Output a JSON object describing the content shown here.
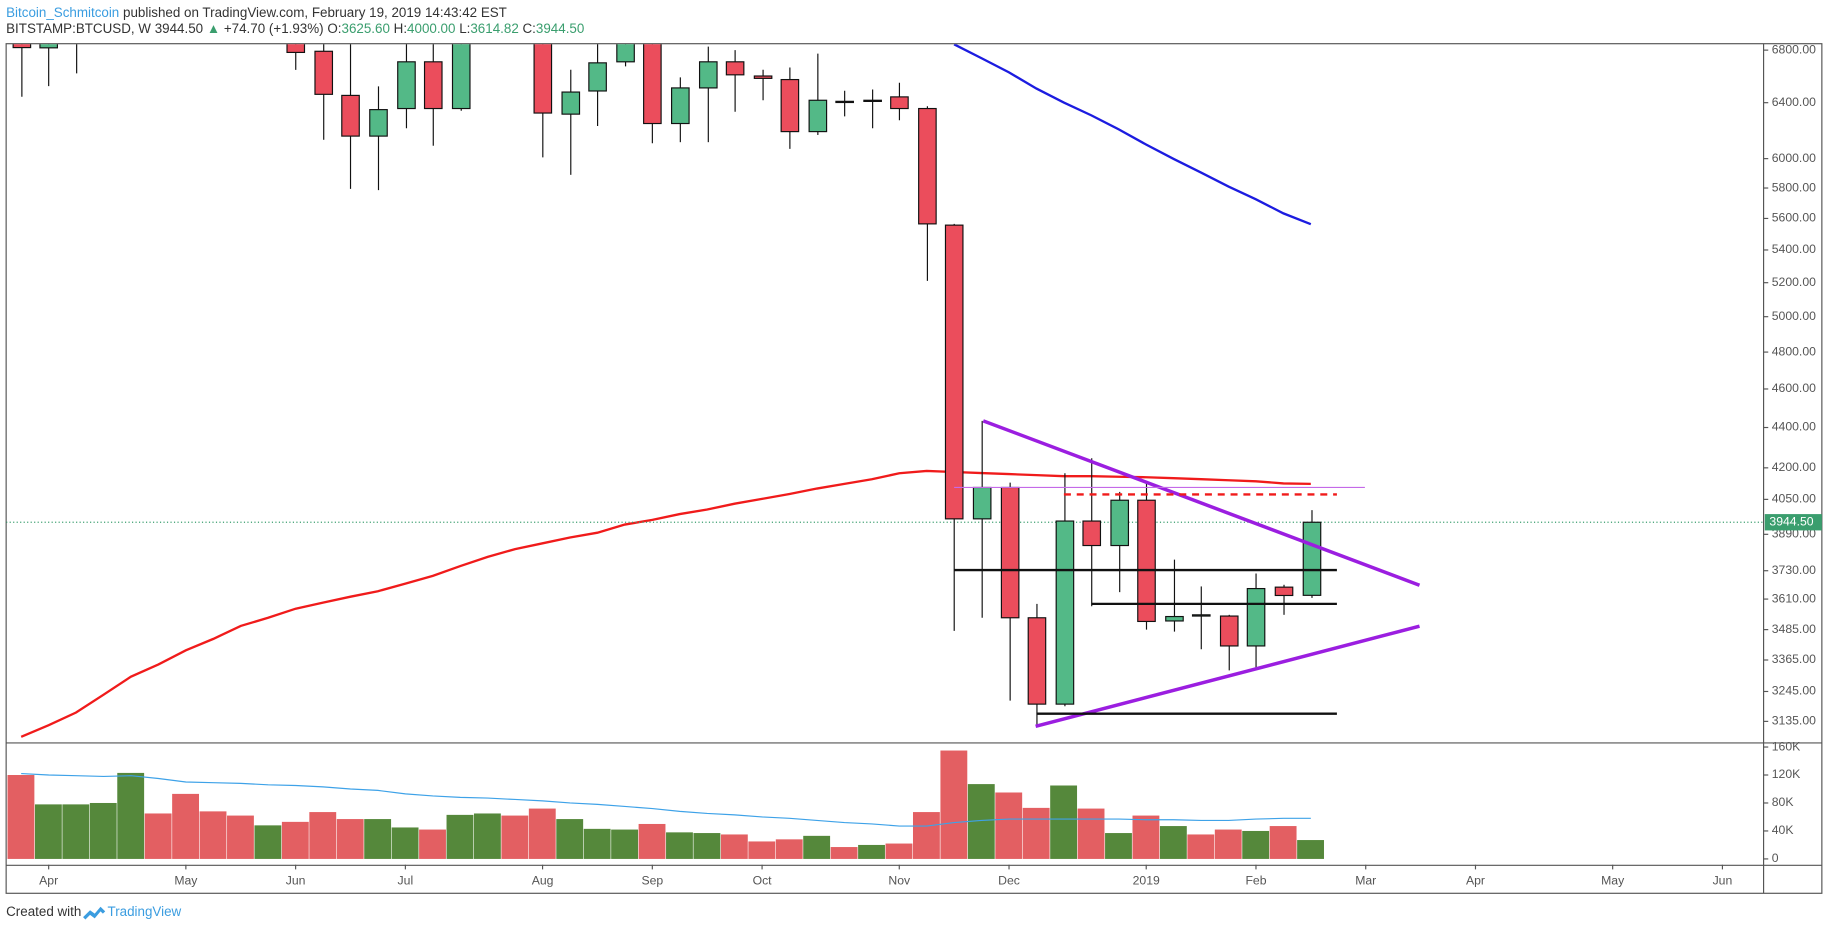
{
  "header": {
    "author": "Bitcoin_Schmitcoin",
    "published": "published on TradingView.com, February 19, 2019 14:43:42 EST",
    "symbol": "BITSTAMP:BTCUSD, W",
    "last": "3944.50",
    "arrow": "▲",
    "change": "+74.70",
    "change_pct": "(+1.93%)",
    "open_key": "O:",
    "open": "3625.60",
    "high_key": "H:",
    "high": "4000.00",
    "low_key": "L:",
    "low": "3614.82",
    "close_key": "C:",
    "close": "3944.50"
  },
  "footer": {
    "created": "Created with",
    "brand": "TradingView"
  },
  "chart_data": [
    {
      "type": "candlestick",
      "log_scale": true,
      "up_color": "#53b987",
      "down_color": "#eb4d5c",
      "x": [
        0,
        1,
        2,
        10,
        11,
        12,
        13,
        14,
        15,
        16,
        19,
        20,
        21,
        22,
        23,
        24,
        25,
        26,
        27,
        28,
        29,
        30,
        31,
        32,
        33,
        34,
        35,
        36,
        37,
        38,
        39,
        40,
        41,
        42,
        43,
        44,
        45,
        46,
        47
      ],
      "open": [
        6900,
        6818,
        6900,
        6880,
        6791,
        6454,
        6158,
        6357,
        6709,
        6357,
        7050,
        6316,
        6487,
        6709,
        7000,
        6248,
        6510,
        6709,
        6600,
        6573,
        6190,
        6410,
        6411,
        6443,
        6357,
        5557,
        3960,
        4106,
        3533,
        3198,
        3950,
        3840,
        4046,
        3520,
        3540,
        3540,
        3420,
        3660,
        3625.6
      ],
      "high": [
        6950,
        6900,
        7100,
        6900,
        6900,
        6870,
        6522,
        6880,
        6850,
        7500,
        7150,
        6648,
        6860,
        7050,
        7100,
        6590,
        6828,
        6800,
        6648,
        6665,
        6773,
        6489,
        6498,
        6549,
        6374,
        5565,
        4434,
        4129,
        3590,
        4174,
        4247,
        4085,
        4129,
        3778,
        3663,
        3545,
        3718,
        3670,
        4000
      ],
      "low": [
        6444,
        6523,
        6620,
        6647,
        6132,
        5794,
        5786,
        6214,
        6090,
        6341,
        6009,
        5889,
        6230,
        6674,
        6107,
        6115,
        6115,
        6333,
        6418,
        6068,
        6166,
        6300,
        6214,
        6272,
        5211,
        3480,
        3533,
        3211,
        3121,
        3190,
        3580,
        3639,
        3485,
        3477,
        3407,
        3325,
        3333,
        3545,
        3614.82
      ],
      "close": [
        6820,
        6880,
        7050,
        6782,
        6462,
        6158,
        6349,
        6709,
        6357,
        7400,
        6324,
        6479,
        6701,
        6950,
        6248,
        6510,
        6709,
        6609,
        6582,
        6190,
        6418,
        6406,
        6418,
        6357,
        5565,
        3960,
        4106,
        3533,
        3198,
        3950,
        3840,
        4046,
        3518,
        3538,
        3545,
        3420,
        3654,
        3625,
        3944.5
      ],
      "xlim": [
        -0.55,
        63.5
      ],
      "xticks": [
        {
          "value": 1,
          "label": "Apr"
        },
        {
          "value": 6,
          "label": "May"
        },
        {
          "value": 10,
          "label": "Jun"
        },
        {
          "value": 14,
          "label": "Jul"
        },
        {
          "value": 19,
          "label": "Aug"
        },
        {
          "value": 23,
          "label": "Sep"
        },
        {
          "value": 27,
          "label": "Oct"
        },
        {
          "value": 32,
          "label": "Nov"
        },
        {
          "value": 36,
          "label": "Dec"
        },
        {
          "value": 41,
          "label": "2019"
        },
        {
          "value": 45,
          "label": "Feb"
        },
        {
          "value": 49,
          "label": "Mar"
        },
        {
          "value": 53,
          "label": "Apr"
        },
        {
          "value": 58,
          "label": "May"
        },
        {
          "value": 62,
          "label": "Jun"
        }
      ],
      "ylim": [
        3060,
        6846
      ],
      "yticks": [
        {
          "value": 6800,
          "label": "6800.00"
        },
        {
          "value": 6400,
          "label": "6400.00"
        },
        {
          "value": 6000,
          "label": "6000.00"
        },
        {
          "value": 5800,
          "label": "5800.00"
        },
        {
          "value": 5600,
          "label": "5600.00"
        },
        {
          "value": 5400,
          "label": "5400.00"
        },
        {
          "value": 5200,
          "label": "5200.00"
        },
        {
          "value": 5000,
          "label": "5000.00"
        },
        {
          "value": 4800,
          "label": "4800.00"
        },
        {
          "value": 4600,
          "label": "4600.00"
        },
        {
          "value": 4400,
          "label": "4400.00"
        },
        {
          "value": 4200,
          "label": "4200.00"
        },
        {
          "value": 4050,
          "label": "4050.00"
        },
        {
          "value": 3890,
          "label": "3890.00"
        },
        {
          "value": 3730,
          "label": "3730.00"
        },
        {
          "value": 3610,
          "label": "3610.00"
        },
        {
          "value": 3485,
          "label": "3485.00"
        },
        {
          "value": 3365,
          "label": "3365.00"
        },
        {
          "value": 3245,
          "label": "3245.00"
        },
        {
          "value": 3135,
          "label": "3135.00"
        }
      ],
      "last_price": {
        "value": 3944.5,
        "label": "3944.50"
      },
      "last_price_color": "#3a9e6e",
      "moving_averages": [
        {
          "color": "#f01b1b",
          "x": [
            0,
            1,
            2,
            3,
            4,
            5,
            6,
            7,
            8,
            9,
            10,
            11,
            12,
            13,
            14,
            15,
            16,
            17,
            18,
            19,
            20,
            21,
            22,
            23,
            24,
            25,
            26,
            27,
            28,
            29,
            30,
            31,
            32,
            33,
            34,
            35,
            36,
            37,
            38,
            39,
            40,
            41,
            42,
            43,
            44,
            45,
            46,
            47
          ],
          "values": [
            3080,
            3121,
            3167,
            3233,
            3301,
            3348,
            3403,
            3448,
            3500,
            3533,
            3570,
            3595,
            3620,
            3643,
            3675,
            3708,
            3750,
            3790,
            3824,
            3850,
            3876,
            3897,
            3934,
            3955,
            3982,
            4003,
            4030,
            4052,
            4075,
            4101,
            4123,
            4145,
            4174,
            4185,
            4180,
            4175,
            4170,
            4165,
            4160,
            4160,
            4157,
            4155,
            4150,
            4145,
            4140,
            4135,
            4125,
            4123
          ]
        },
        {
          "color": "#1c1ce0",
          "x": [
            34,
            35,
            36,
            37,
            38,
            39,
            40,
            41,
            42,
            43,
            44,
            45,
            46,
            47
          ],
          "values": [
            6846,
            6736,
            6628,
            6505,
            6401,
            6307,
            6206,
            6098,
            5998,
            5904,
            5810,
            5725,
            5633,
            5563
          ]
        }
      ],
      "drawings": [
        {
          "color": "#9b1ee0",
          "width": 3,
          "x": [
            35.06,
            50.96
          ],
          "values": [
            4434,
            3668
          ]
        },
        {
          "color": "#9b1ee0",
          "width": 3,
          "x": [
            36.97,
            50.96
          ],
          "values": [
            3117,
            3499
          ]
        },
        {
          "color": "#111111",
          "width": 2,
          "x": [
            34,
            47.95
          ],
          "values": [
            3733,
            3733
          ]
        },
        {
          "color": "#111111",
          "width": 2,
          "x": [
            39,
            47.95
          ],
          "values": [
            3590,
            3590
          ]
        },
        {
          "color": "#111111",
          "width": 2,
          "x": [
            37,
            47.95
          ],
          "values": [
            3163,
            3163
          ]
        },
        {
          "color": "#f01b1b",
          "width": 2,
          "dashed": true,
          "x": [
            38,
            47.95
          ],
          "values": [
            4073,
            4073
          ]
        },
        {
          "color": "#c46ae8",
          "width": 1,
          "x": [
            34,
            48.97
          ],
          "values": [
            4106,
            4106
          ]
        }
      ]
    },
    {
      "type": "bar",
      "x": [
        0,
        1,
        2,
        3,
        4,
        5,
        6,
        7,
        8,
        9,
        10,
        11,
        12,
        13,
        14,
        15,
        16,
        17,
        18,
        19,
        20,
        21,
        22,
        23,
        24,
        25,
        26,
        27,
        28,
        29,
        30,
        31,
        32,
        33,
        34,
        35,
        36,
        37,
        38,
        39,
        40,
        41,
        42,
        43,
        44,
        45,
        46,
        47
      ],
      "values": [
        120000,
        78000,
        78000,
        80000,
        123000,
        65000,
        93000,
        68000,
        62000,
        48000,
        53000,
        67000,
        57000,
        57000,
        45000,
        42000,
        63000,
        65000,
        62000,
        72000,
        57000,
        43000,
        42000,
        50000,
        38000,
        37000,
        35000,
        25000,
        28000,
        33000,
        17000,
        20000,
        22000,
        67000,
        155000,
        107000,
        95000,
        73000,
        105000,
        72000,
        37000,
        62000,
        47000,
        35000,
        42000,
        40000,
        47000,
        27000
      ],
      "colors": [
        "#e35f62",
        "#55883b",
        "#55883b",
        "#55883b",
        "#55883b",
        "#e35f62",
        "#e35f62",
        "#e35f62",
        "#e35f62",
        "#55883b",
        "#e35f62",
        "#e35f62",
        "#e35f62",
        "#55883b",
        "#55883b",
        "#e35f62",
        "#55883b",
        "#55883b",
        "#e35f62",
        "#e35f62",
        "#55883b",
        "#55883b",
        "#55883b",
        "#e35f62",
        "#55883b",
        "#55883b",
        "#e35f62",
        "#e35f62",
        "#e35f62",
        "#55883b",
        "#e35f62",
        "#55883b",
        "#e35f62",
        "#e35f62",
        "#e35f62",
        "#55883b",
        "#e35f62",
        "#e35f62",
        "#55883b",
        "#e35f62",
        "#55883b",
        "#e35f62",
        "#55883b",
        "#e35f62",
        "#e35f62",
        "#55883b",
        "#e35f62",
        "#55883b"
      ],
      "xlim": [
        -0.55,
        63.5
      ],
      "ylim": [
        -8300,
        165000
      ],
      "yticks": [
        {
          "value": 160000,
          "label": "160K"
        },
        {
          "value": 120000,
          "label": "120K"
        },
        {
          "value": 80000,
          "label": "80K"
        },
        {
          "value": 40000,
          "label": "40K"
        },
        0
      ],
      "moving_average": {
        "color": "#3ea2e8",
        "values": [
          122000,
          120000,
          119000,
          118000,
          119000,
          115000,
          110000,
          109000,
          108000,
          106000,
          105000,
          103000,
          100000,
          98000,
          93000,
          90000,
          88000,
          87000,
          85000,
          83000,
          80000,
          78000,
          75000,
          72000,
          68000,
          65000,
          63000,
          60000,
          58000,
          55000,
          52000,
          50000,
          47000,
          47000,
          52000,
          55000,
          57000,
          57000,
          57000,
          57000,
          57000,
          56000,
          56000,
          55000,
          55000,
          57000,
          58000,
          58000
        ]
      }
    }
  ]
}
